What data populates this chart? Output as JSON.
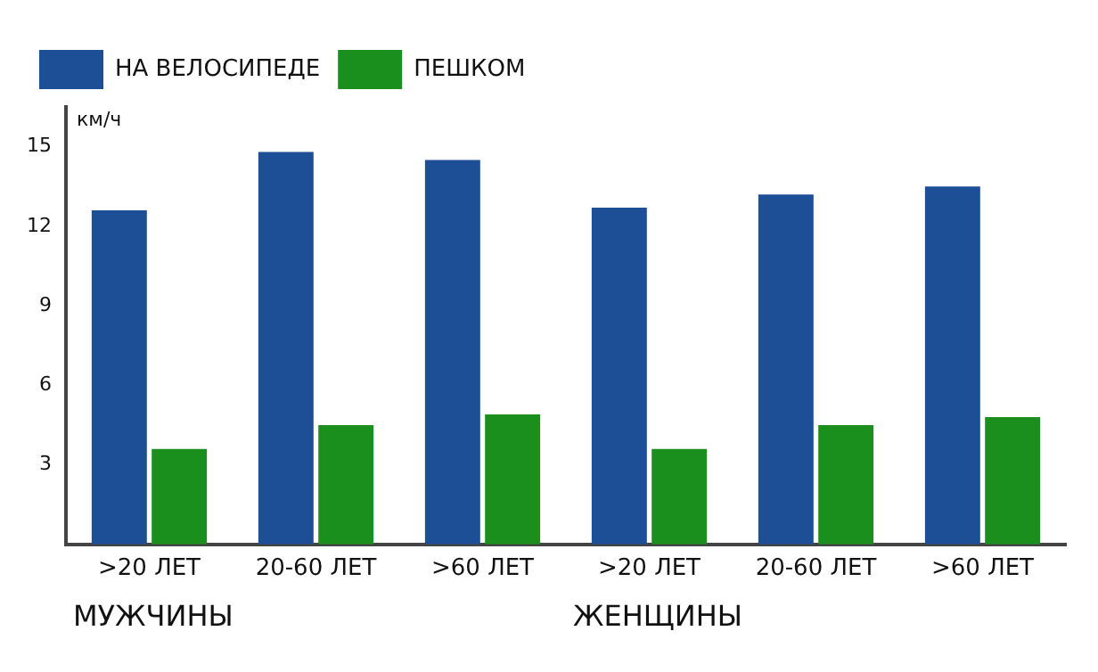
{
  "chart_data": {
    "type": "bar",
    "ylabel": "км/ч",
    "categories": [
      ">20 ЛЕТ",
      "20-60 ЛЕТ",
      ">60 ЛЕТ",
      ">20 ЛЕТ",
      "20-60 ЛЕТ",
      ">60 ЛЕТ"
    ],
    "series": [
      {
        "name": "НА ВЕЛОСИПЕДЕ",
        "color": "#1c4f96",
        "values": [
          12.6,
          14.8,
          14.5,
          12.7,
          13.2,
          13.5
        ]
      },
      {
        "name": "ПЕШКОМ",
        "color": "#1a8f1e",
        "values": [
          3.6,
          4.5,
          4.9,
          3.6,
          4.5,
          4.8
        ]
      }
    ],
    "ylim": [
      0,
      16.5
    ],
    "yticks": [
      3,
      6,
      9,
      12,
      15
    ],
    "grid": false,
    "legend": "top left",
    "annotations": [
      "МУЖЧИНЫ",
      "ЖЕНЩИНЫ"
    ]
  }
}
